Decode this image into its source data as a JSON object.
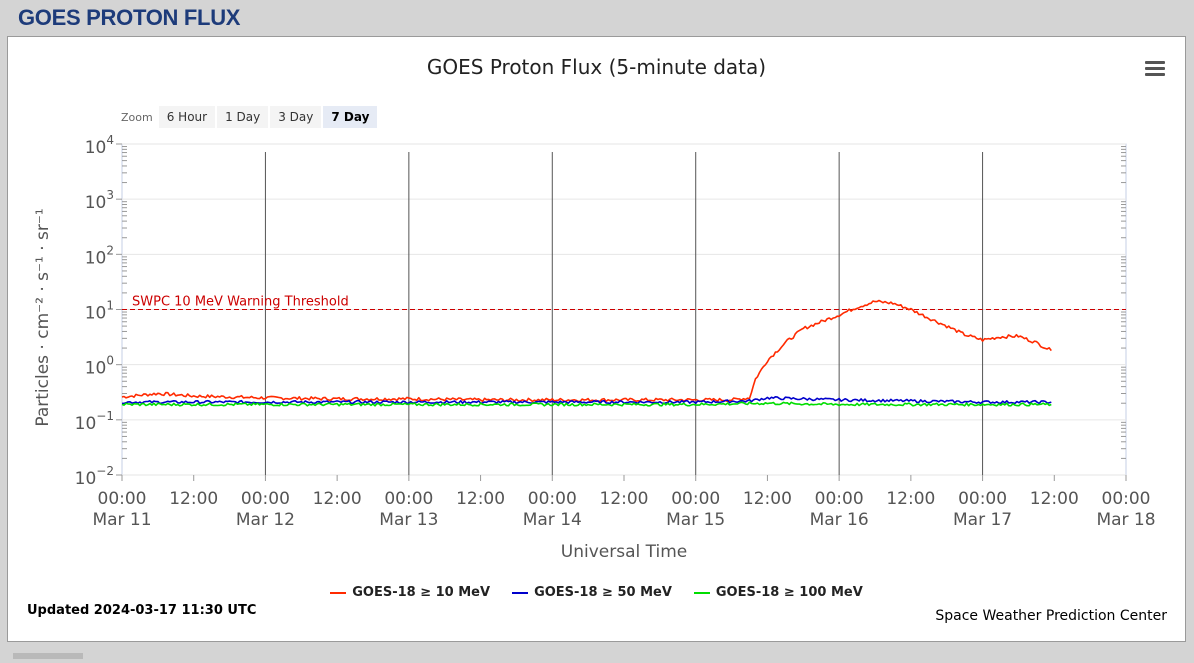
{
  "header": {
    "title": "GOES PROTON FLUX"
  },
  "chart_data": {
    "type": "line",
    "title": "GOES Proton Flux (5-minute data)",
    "xlabel": "Universal Time",
    "ylabel": "Particles · cm⁻² · s⁻¹ · sr⁻¹",
    "yscale": "log",
    "ylim": [
      0.01,
      10000
    ],
    "y_ticks": [
      {
        "base": "10",
        "exp": "4"
      },
      {
        "base": "10",
        "exp": "3"
      },
      {
        "base": "10",
        "exp": "2"
      },
      {
        "base": "10",
        "exp": "1"
      },
      {
        "base": "10",
        "exp": "0"
      },
      {
        "base": "10",
        "exp": "−1"
      },
      {
        "base": "10",
        "exp": "−2"
      }
    ],
    "x_ticks": [
      {
        "time": "00:00",
        "date": "Mar 11"
      },
      {
        "time": "12:00",
        "date": ""
      },
      {
        "time": "00:00",
        "date": "Mar 12"
      },
      {
        "time": "12:00",
        "date": ""
      },
      {
        "time": "00:00",
        "date": "Mar 13"
      },
      {
        "time": "12:00",
        "date": ""
      },
      {
        "time": "00:00",
        "date": "Mar 14"
      },
      {
        "time": "12:00",
        "date": ""
      },
      {
        "time": "00:00",
        "date": "Mar 15"
      },
      {
        "time": "12:00",
        "date": ""
      },
      {
        "time": "00:00",
        "date": "Mar 16"
      },
      {
        "time": "12:00",
        "date": ""
      },
      {
        "time": "00:00",
        "date": "Mar 17"
      },
      {
        "time": "12:00",
        "date": ""
      },
      {
        "time": "00:00",
        "date": "Mar 18"
      }
    ],
    "threshold": {
      "label": "SWPC 10 MeV Warning Threshold",
      "value": 10,
      "color": "#cc0000"
    },
    "series": [
      {
        "name": "GOES-18 ≥ 10 MeV",
        "color": "#ff2a00",
        "points": [
          [
            "2024-03-11 00:00",
            0.26
          ],
          [
            "2024-03-11 06:00",
            0.3
          ],
          [
            "2024-03-11 12:00",
            0.27
          ],
          [
            "2024-03-11 18:00",
            0.26
          ],
          [
            "2024-03-12 00:00",
            0.25
          ],
          [
            "2024-03-12 12:00",
            0.24
          ],
          [
            "2024-03-13 00:00",
            0.24
          ],
          [
            "2024-03-13 12:00",
            0.23
          ],
          [
            "2024-03-14 00:00",
            0.23
          ],
          [
            "2024-03-14 12:00",
            0.23
          ],
          [
            "2024-03-15 00:00",
            0.23
          ],
          [
            "2024-03-15 06:00",
            0.23
          ],
          [
            "2024-03-15 09:00",
            0.25
          ],
          [
            "2024-03-15 10:00",
            0.55
          ],
          [
            "2024-03-15 12:00",
            1.2
          ],
          [
            "2024-03-15 15:00",
            2.5
          ],
          [
            "2024-03-15 18:00",
            4.5
          ],
          [
            "2024-03-16 00:00",
            8.0
          ],
          [
            "2024-03-16 03:00",
            11.0
          ],
          [
            "2024-03-16 06:00",
            14.0
          ],
          [
            "2024-03-16 09:00",
            13.0
          ],
          [
            "2024-03-16 12:00",
            10.0
          ],
          [
            "2024-03-16 15:00",
            7.0
          ],
          [
            "2024-03-16 18:00",
            5.0
          ],
          [
            "2024-03-16 21:00",
            3.5
          ],
          [
            "2024-03-17 00:00",
            2.8
          ],
          [
            "2024-03-17 03:00",
            3.2
          ],
          [
            "2024-03-17 06:00",
            3.3
          ],
          [
            "2024-03-17 09:00",
            2.5
          ],
          [
            "2024-03-17 11:30",
            1.8
          ]
        ]
      },
      {
        "name": "GOES-18 ≥ 50 MeV",
        "color": "#0000cc",
        "points": [
          [
            "2024-03-11 00:00",
            0.21
          ],
          [
            "2024-03-12 00:00",
            0.21
          ],
          [
            "2024-03-13 00:00",
            0.21
          ],
          [
            "2024-03-14 00:00",
            0.21
          ],
          [
            "2024-03-15 00:00",
            0.21
          ],
          [
            "2024-03-15 09:00",
            0.22
          ],
          [
            "2024-03-15 12:00",
            0.25
          ],
          [
            "2024-03-15 18:00",
            0.24
          ],
          [
            "2024-03-16 00:00",
            0.23
          ],
          [
            "2024-03-16 12:00",
            0.22
          ],
          [
            "2024-03-17 00:00",
            0.21
          ],
          [
            "2024-03-17 11:30",
            0.21
          ]
        ]
      },
      {
        "name": "GOES-18 ≥ 100 MeV",
        "color": "#00dd00",
        "points": [
          [
            "2024-03-11 00:00",
            0.19
          ],
          [
            "2024-03-12 00:00",
            0.19
          ],
          [
            "2024-03-13 00:00",
            0.19
          ],
          [
            "2024-03-14 00:00",
            0.19
          ],
          [
            "2024-03-15 00:00",
            0.19
          ],
          [
            "2024-03-15 12:00",
            0.2
          ],
          [
            "2024-03-16 00:00",
            0.19
          ],
          [
            "2024-03-16 12:00",
            0.19
          ],
          [
            "2024-03-17 00:00",
            0.19
          ],
          [
            "2024-03-17 11:30",
            0.19
          ]
        ]
      }
    ],
    "x_range": [
      "2024-03-11 00:00",
      "2024-03-18 00:00"
    ],
    "legend_position": "bottom-center",
    "grid": true
  },
  "zoom": {
    "label": "Zoom",
    "options": [
      "6 Hour",
      "1 Day",
      "3 Day",
      "7 Day"
    ],
    "active": "7 Day"
  },
  "footer": {
    "updated": "Updated 2024-03-17 11:30 UTC",
    "credit": "Space Weather Prediction Center"
  }
}
